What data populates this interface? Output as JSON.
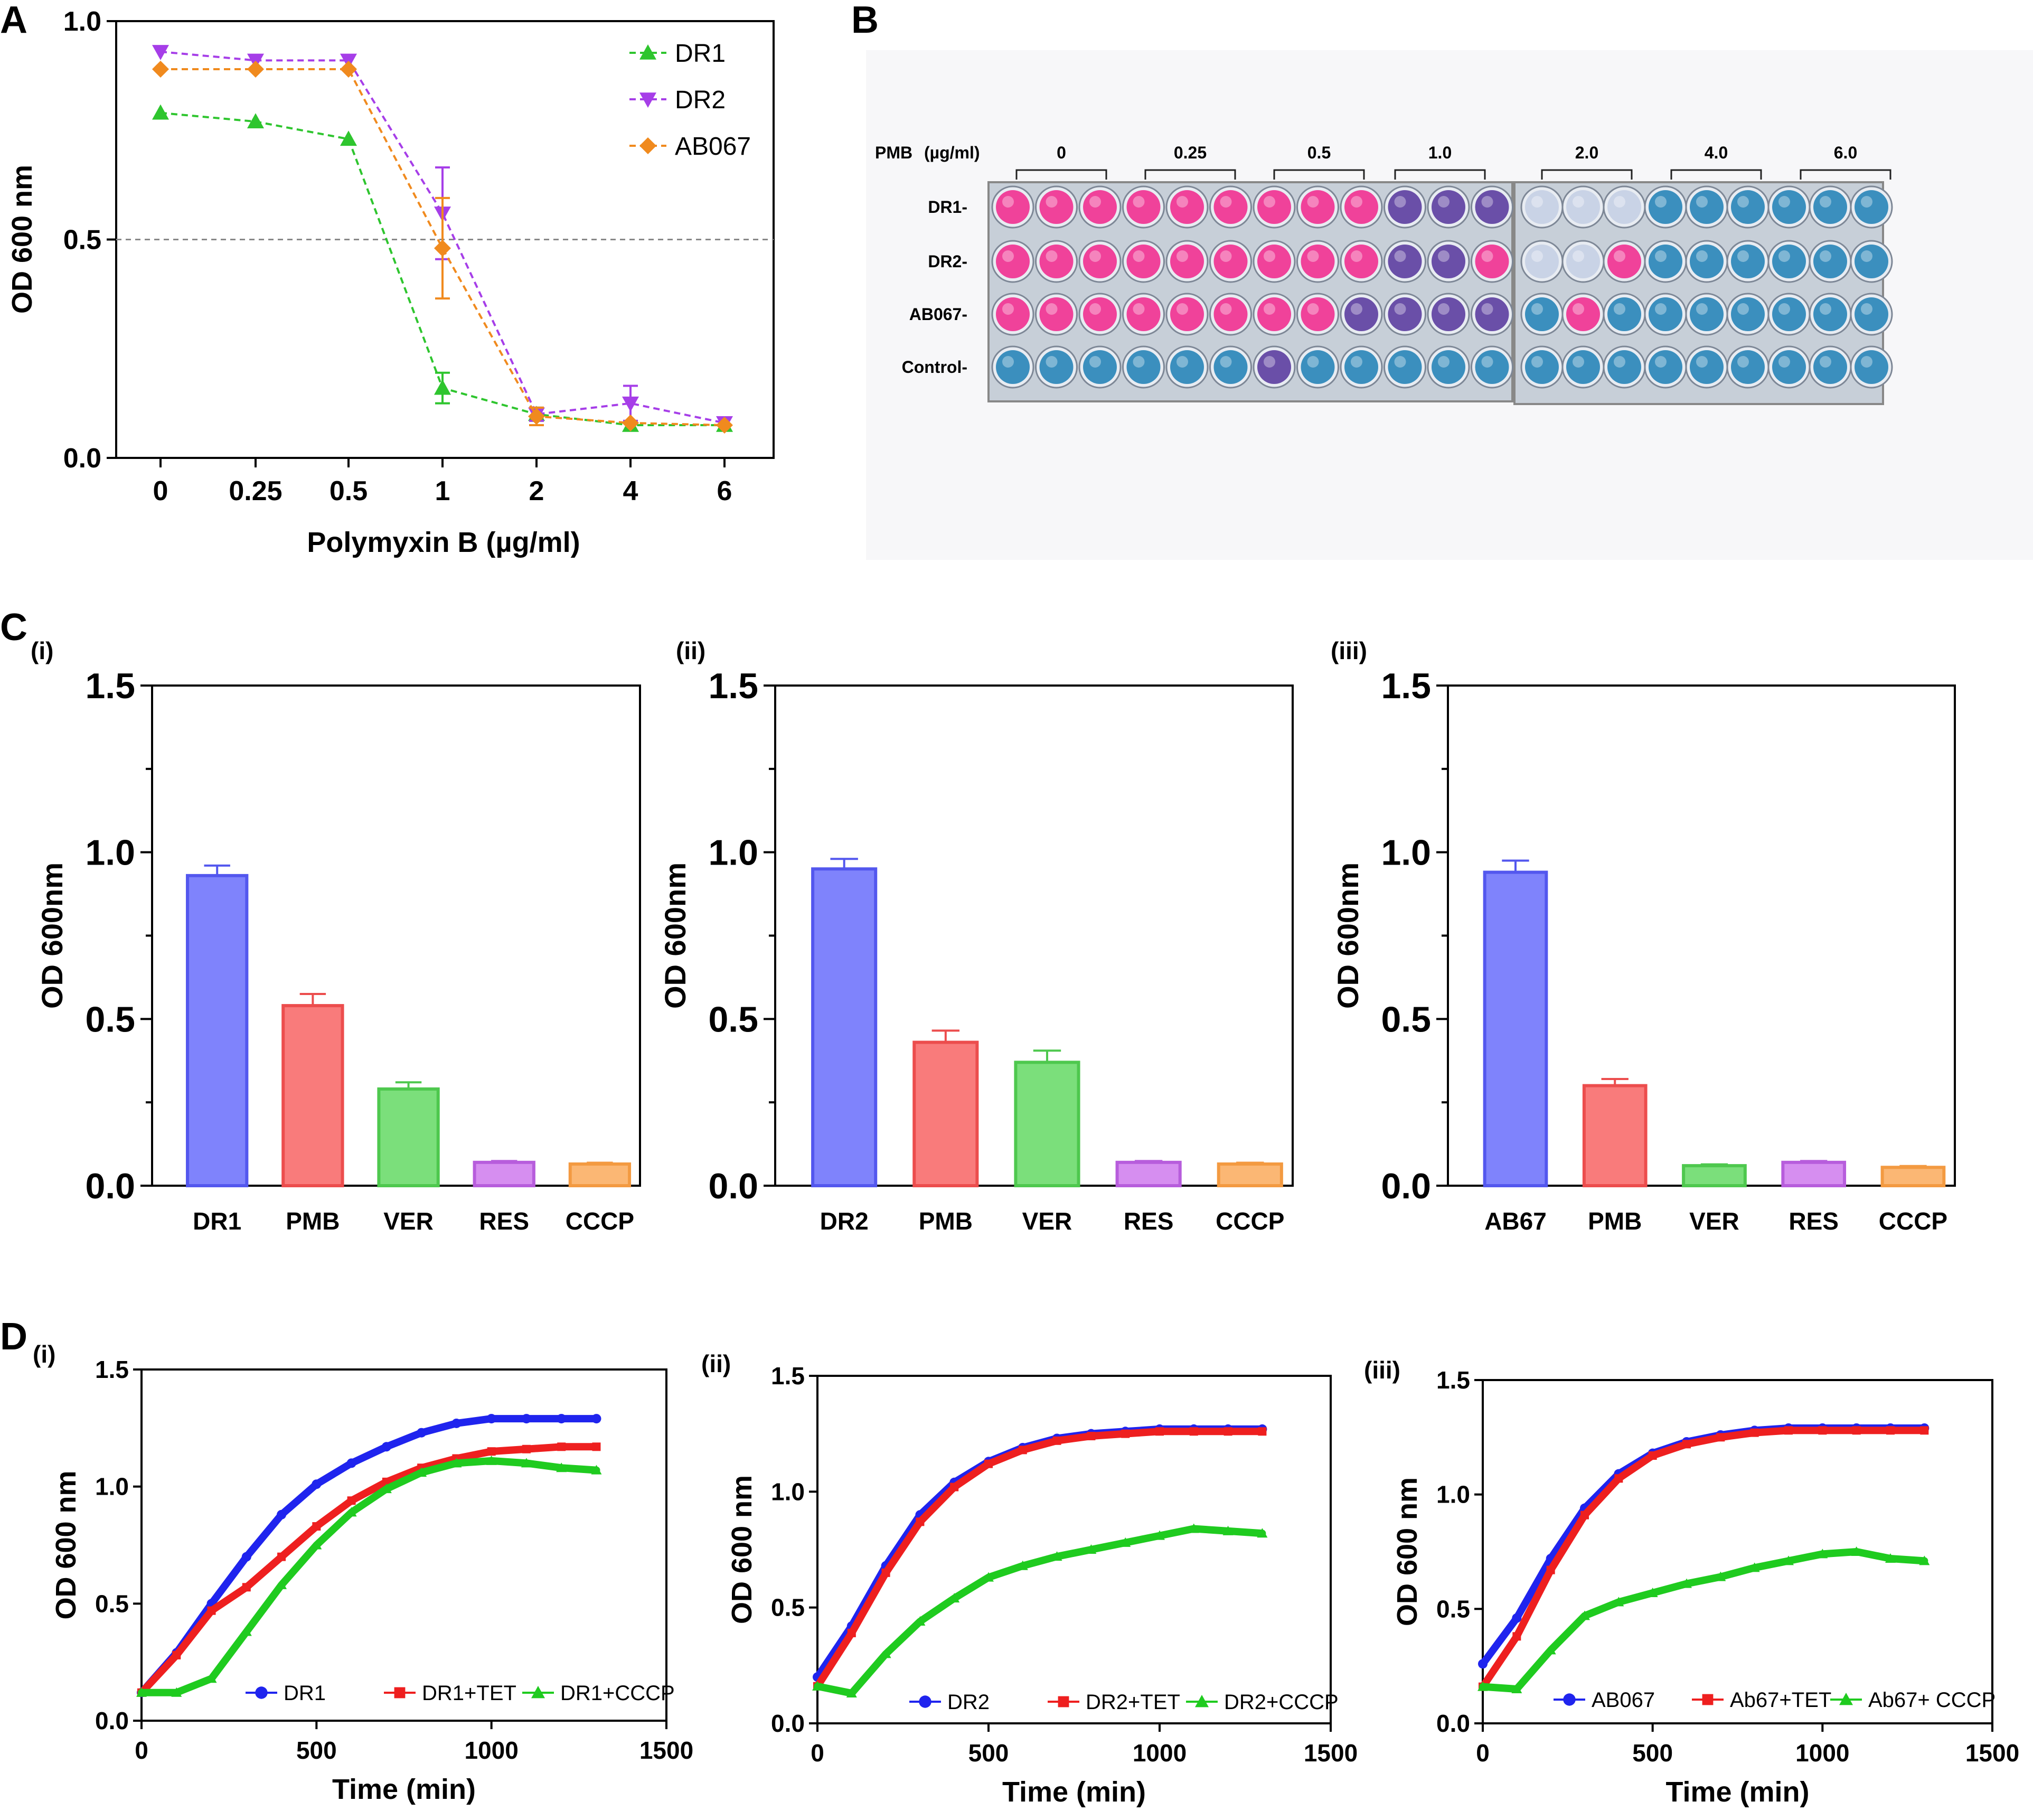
{
  "panels": {
    "A": {
      "letter": "A",
      "chart_data": {
        "type": "line",
        "title": "",
        "xlabel": "Polymyxin B (µg/ml)",
        "ylabel": "OD 600 nm",
        "categories": [
          "0",
          "0.25",
          "0.5",
          "1",
          "2",
          "4",
          "6"
        ],
        "ylim": [
          0,
          1.0
        ],
        "yticks": [
          "0.0",
          "0.5",
          "1.0"
        ],
        "legend_position": "top-right",
        "series": [
          {
            "name": "DR1",
            "color": "#2ec52e",
            "marker": "triangle-up",
            "values": [
              0.79,
              0.77,
              0.73,
              0.16,
              0.1,
              0.075,
              0.075
            ],
            "errors": [
              0.01,
              0.01,
              0.01,
              0.035,
              0.015,
              0.01,
              0.008
            ]
          },
          {
            "name": "DR2",
            "color": "#a63ee8",
            "marker": "triangle-down",
            "values": [
              0.93,
              0.91,
              0.91,
              0.56,
              0.1,
              0.125,
              0.08
            ],
            "errors": [
              0.005,
              0.005,
              0.005,
              0.105,
              0.015,
              0.04,
              0.008
            ]
          },
          {
            "name": "AB067",
            "color": "#f08a1e",
            "marker": "diamond",
            "values": [
              0.89,
              0.89,
              0.89,
              0.48,
              0.095,
              0.08,
              0.075
            ],
            "errors": [
              0.005,
              0.005,
              0.005,
              0.115,
              0.02,
              0.01,
              0.008
            ]
          }
        ]
      }
    },
    "B": {
      "letter": "B",
      "plate": {
        "pmb_label": "PMB",
        "unit_label": "(µg/ml)",
        "concentrations": [
          "0",
          "0.25",
          "0.5",
          "1.0",
          "2.0",
          "4.0",
          "6.0"
        ],
        "rows": [
          "DR1-",
          "DR2-",
          "AB067-",
          "Control-"
        ],
        "colors": {
          "pink": "#f0429a",
          "blue": "#3b8fbe",
          "purple": "#6a4fa8",
          "pale": "#c9d3e6"
        },
        "wells": [
          [
            "pink",
            "pink",
            "pink",
            "pink",
            "pink",
            "pink",
            "pink",
            "pink",
            "pink",
            "purple",
            "purple",
            "purple",
            "pale",
            "pale",
            "pale",
            "blue",
            "blue",
            "blue",
            "blue",
            "blue",
            "blue"
          ],
          [
            "pink",
            "pink",
            "pink",
            "pink",
            "pink",
            "pink",
            "pink",
            "pink",
            "pink",
            "purple",
            "purple",
            "pink",
            "pale",
            "pale",
            "pink",
            "blue",
            "blue",
            "blue",
            "blue",
            "blue",
            "blue"
          ],
          [
            "pink",
            "pink",
            "pink",
            "pink",
            "pink",
            "pink",
            "pink",
            "pink",
            "purple",
            "purple",
            "purple",
            "purple",
            "blue",
            "pink",
            "blue",
            "blue",
            "blue",
            "blue",
            "blue",
            "blue",
            "blue"
          ],
          [
            "blue",
            "blue",
            "blue",
            "blue",
            "blue",
            "blue",
            "purple",
            "blue",
            "blue",
            "blue",
            "blue",
            "blue",
            "blue",
            "blue",
            "blue",
            "blue",
            "blue",
            "blue",
            "blue",
            "blue",
            "blue"
          ]
        ]
      }
    },
    "C": {
      "letter": "C",
      "subpanels": [
        {
          "sub": "(i)",
          "chart_data": {
            "type": "bar",
            "ylabel": "OD 600nm",
            "ylim": [
              0,
              1.5
            ],
            "yticks": [
              "0.0",
              "0.5",
              "1.0",
              "1.5"
            ],
            "categories": [
              "DR1",
              "PMB",
              "VER",
              "RES",
              "CCCP"
            ],
            "values": [
              0.93,
              0.54,
              0.29,
              0.07,
              0.065
            ],
            "errors": [
              0.03,
              0.035,
              0.02,
              0.004,
              0.004
            ],
            "colors": [
              "#7f83fc",
              "#f97b7b",
              "#7bdf7b",
              "#d68ef0",
              "#fbb774"
            ],
            "edges": [
              "#5357ee",
              "#ec4d4d",
              "#4ec84e",
              "#b75ddc",
              "#f39a41"
            ]
          }
        },
        {
          "sub": "(ii)",
          "chart_data": {
            "type": "bar",
            "ylabel": "OD 600nm",
            "ylim": [
              0,
              1.5
            ],
            "yticks": [
              "0.0",
              "0.5",
              "1.0",
              "1.5"
            ],
            "categories": [
              "DR2",
              "PMB",
              "VER",
              "RES",
              "CCCP"
            ],
            "values": [
              0.95,
              0.43,
              0.37,
              0.07,
              0.065
            ],
            "errors": [
              0.03,
              0.035,
              0.035,
              0.004,
              0.004
            ],
            "colors": [
              "#7f83fc",
              "#f97b7b",
              "#7bdf7b",
              "#d68ef0",
              "#fbb774"
            ],
            "edges": [
              "#5357ee",
              "#ec4d4d",
              "#4ec84e",
              "#b75ddc",
              "#f39a41"
            ]
          }
        },
        {
          "sub": "(iii)",
          "chart_data": {
            "type": "bar",
            "ylabel": "OD 600nm",
            "ylim": [
              0,
              1.5
            ],
            "yticks": [
              "0.0",
              "0.5",
              "1.0",
              "1.5"
            ],
            "categories": [
              "AB67",
              "PMB",
              "VER",
              "RES",
              "CCCP"
            ],
            "values": [
              0.94,
              0.3,
              0.06,
              0.07,
              0.055
            ],
            "errors": [
              0.035,
              0.02,
              0.004,
              0.004,
              0.004
            ],
            "colors": [
              "#7f83fc",
              "#f97b7b",
              "#7bdf7b",
              "#d68ef0",
              "#fbb774"
            ],
            "edges": [
              "#5357ee",
              "#ec4d4d",
              "#4ec84e",
              "#b75ddc",
              "#f39a41"
            ]
          }
        }
      ]
    },
    "D": {
      "letter": "D",
      "subpanels": [
        {
          "sub": "(i)",
          "chart_data": {
            "type": "line",
            "xlabel": "Time (min)",
            "ylabel": "OD 600 nm",
            "xlim": [
              0,
              1500
            ],
            "ylim": [
              0,
              1.5
            ],
            "xticks": [
              "0",
              "500",
              "1000",
              "1500"
            ],
            "yticks": [
              "0.0",
              "0.5",
              "1.0",
              "1.5"
            ],
            "series": [
              {
                "name": "DR1",
                "color": "#1f24ee",
                "marker": "circle",
                "x": [
                  0,
                  100,
                  200,
                  300,
                  400,
                  500,
                  600,
                  700,
                  800,
                  900,
                  1000,
                  1100,
                  1200,
                  1300
                ],
                "values": [
                  0.12,
                  0.29,
                  0.5,
                  0.7,
                  0.88,
                  1.01,
                  1.1,
                  1.17,
                  1.23,
                  1.27,
                  1.29,
                  1.29,
                  1.29,
                  1.29
                ]
              },
              {
                "name": "DR1+TET",
                "color": "#ee1f1f",
                "marker": "square",
                "x": [
                  0,
                  100,
                  200,
                  300,
                  400,
                  500,
                  600,
                  700,
                  800,
                  900,
                  1000,
                  1100,
                  1200,
                  1300
                ],
                "values": [
                  0.12,
                  0.28,
                  0.47,
                  0.57,
                  0.7,
                  0.83,
                  0.94,
                  1.02,
                  1.08,
                  1.12,
                  1.15,
                  1.16,
                  1.17,
                  1.17
                ]
              },
              {
                "name": "DR1+CCCP",
                "color": "#1fcb1f",
                "marker": "triangle-up",
                "x": [
                  0,
                  100,
                  200,
                  300,
                  400,
                  500,
                  600,
                  700,
                  800,
                  900,
                  1000,
                  1100,
                  1200,
                  1300
                ],
                "values": [
                  0.12,
                  0.12,
                  0.18,
                  0.38,
                  0.58,
                  0.75,
                  0.89,
                  0.99,
                  1.06,
                  1.1,
                  1.11,
                  1.1,
                  1.08,
                  1.07
                ]
              }
            ]
          }
        },
        {
          "sub": "(ii)",
          "chart_data": {
            "type": "line",
            "xlabel": "Time (min)",
            "ylabel": "OD 600 nm",
            "xlim": [
              0,
              1500
            ],
            "ylim": [
              0,
              1.5
            ],
            "xticks": [
              "0",
              "500",
              "1000",
              "1500"
            ],
            "yticks": [
              "0.0",
              "0.5",
              "1.0",
              "1.5"
            ],
            "series": [
              {
                "name": "DR2",
                "color": "#1f24ee",
                "marker": "circle",
                "x": [
                  0,
                  100,
                  200,
                  300,
                  400,
                  500,
                  600,
                  700,
                  800,
                  900,
                  1000,
                  1100,
                  1200,
                  1300
                ],
                "values": [
                  0.2,
                  0.42,
                  0.68,
                  0.9,
                  1.04,
                  1.13,
                  1.19,
                  1.23,
                  1.25,
                  1.26,
                  1.27,
                  1.27,
                  1.27,
                  1.27
                ]
              },
              {
                "name": "DR2+TET",
                "color": "#ee1f1f",
                "marker": "square",
                "x": [
                  0,
                  100,
                  200,
                  300,
                  400,
                  500,
                  600,
                  700,
                  800,
                  900,
                  1000,
                  1100,
                  1200,
                  1300
                ],
                "values": [
                  0.16,
                  0.39,
                  0.65,
                  0.87,
                  1.02,
                  1.12,
                  1.18,
                  1.22,
                  1.24,
                  1.25,
                  1.26,
                  1.26,
                  1.26,
                  1.26
                ]
              },
              {
                "name": "DR2+CCCP",
                "color": "#1fcb1f",
                "marker": "triangle-up",
                "x": [
                  0,
                  100,
                  200,
                  300,
                  400,
                  500,
                  600,
                  700,
                  800,
                  900,
                  1000,
                  1100,
                  1200,
                  1300
                ],
                "values": [
                  0.16,
                  0.13,
                  0.3,
                  0.44,
                  0.54,
                  0.63,
                  0.68,
                  0.72,
                  0.75,
                  0.78,
                  0.81,
                  0.84,
                  0.83,
                  0.82
                ]
              }
            ]
          }
        },
        {
          "sub": "(iii)",
          "chart_data": {
            "type": "line",
            "xlabel": "Time (min)",
            "ylabel": "OD 600 nm",
            "xlim": [
              0,
              1500
            ],
            "ylim": [
              0,
              1.5
            ],
            "xticks": [
              "0",
              "500",
              "1000",
              "1500"
            ],
            "yticks": [
              "0.0",
              "0.5",
              "1.0",
              "1.5"
            ],
            "series": [
              {
                "name": "AB067",
                "color": "#1f24ee",
                "marker": "circle",
                "x": [
                  0,
                  100,
                  200,
                  300,
                  400,
                  500,
                  600,
                  700,
                  800,
                  900,
                  1000,
                  1100,
                  1200,
                  1300
                ],
                "values": [
                  0.26,
                  0.46,
                  0.72,
                  0.94,
                  1.09,
                  1.18,
                  1.23,
                  1.26,
                  1.28,
                  1.29,
                  1.29,
                  1.29,
                  1.29,
                  1.29
                ]
              },
              {
                "name": "Ab67+TET",
                "color": "#ee1f1f",
                "marker": "square",
                "x": [
                  0,
                  100,
                  200,
                  300,
                  400,
                  500,
                  600,
                  700,
                  800,
                  900,
                  1000,
                  1100,
                  1200,
                  1300
                ],
                "values": [
                  0.16,
                  0.38,
                  0.67,
                  0.91,
                  1.07,
                  1.17,
                  1.22,
                  1.25,
                  1.27,
                  1.28,
                  1.28,
                  1.28,
                  1.28,
                  1.28
                ]
              },
              {
                "name": "Ab67+ CCCP",
                "color": "#1fcb1f",
                "marker": "triangle-up",
                "x": [
                  0,
                  100,
                  200,
                  300,
                  400,
                  500,
                  600,
                  700,
                  800,
                  900,
                  1000,
                  1100,
                  1200,
                  1300
                ],
                "values": [
                  0.16,
                  0.15,
                  0.32,
                  0.47,
                  0.53,
                  0.57,
                  0.61,
                  0.64,
                  0.68,
                  0.71,
                  0.74,
                  0.75,
                  0.72,
                  0.71
                ]
              }
            ]
          }
        }
      ]
    }
  }
}
